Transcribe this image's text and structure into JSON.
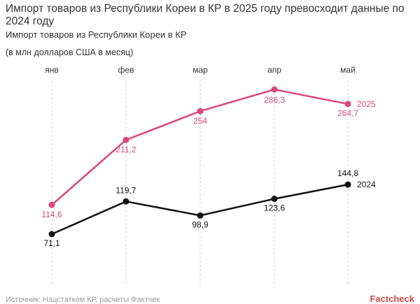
{
  "title": "Импорт товаров из Республики Кореи в КР в 2025 году превосходит данные по 2024 году",
  "subtitle": "Импорт товаров из Республики Кореи в КР",
  "unit": "(в млн долларов США в месяц)",
  "footer": {
    "source": "Источник: Нацстатком КР, расчеты Фактчек",
    "brand": "Factcheck"
  },
  "colors": {
    "series_2025": "#d9467f",
    "series_2024": "#111111",
    "grid": "#cfcfcf"
  },
  "chart_data": {
    "type": "line",
    "categories": [
      "янв",
      "фев",
      "мар",
      "апр",
      "май"
    ],
    "series": [
      {
        "name": "2025",
        "values": [
          114.6,
          211.2,
          254,
          286.3,
          264.7
        ],
        "labels": [
          "114,6",
          "211,2",
          "254",
          "286,3",
          "264,7"
        ]
      },
      {
        "name": "2024",
        "values": [
          71.1,
          119.7,
          98.9,
          123.6,
          144.8
        ],
        "labels": [
          "71,1",
          "119,7",
          "98,9",
          "123,6",
          "144,8"
        ]
      }
    ],
    "grid": "vertical-dashed",
    "legend": "inline-right"
  }
}
